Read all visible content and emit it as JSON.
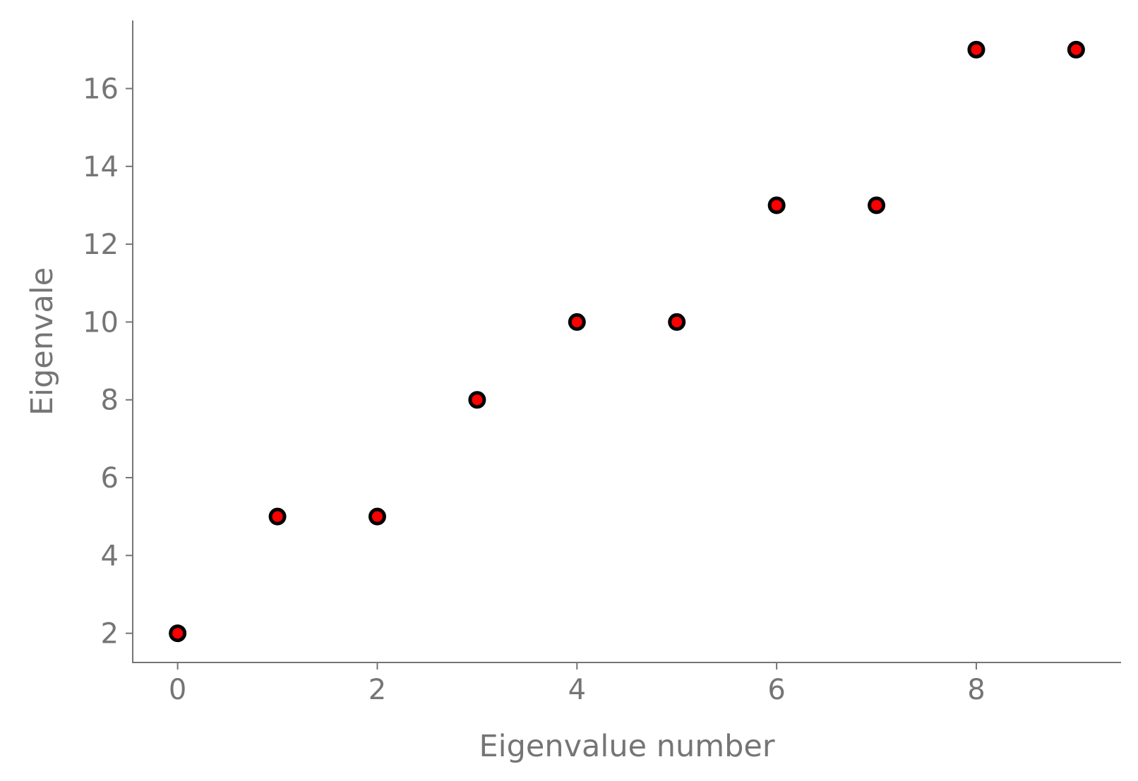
{
  "chart_data": {
    "type": "scatter",
    "title": "",
    "xlabel": "Eigenvalue number",
    "ylabel": "Eigenvale",
    "x": [
      0,
      1,
      2,
      3,
      4,
      5,
      6,
      7,
      8,
      9
    ],
    "y": [
      2,
      5,
      5,
      8,
      10,
      10,
      13,
      13,
      17,
      17
    ],
    "xlim": [
      -0.45,
      9.45
    ],
    "ylim": [
      1.25,
      17.75
    ],
    "xticks": [
      0,
      2,
      4,
      6,
      8
    ],
    "yticks": [
      2,
      4,
      6,
      8,
      10,
      12,
      14,
      16
    ],
    "grid": false,
    "legend": "none",
    "colors": {
      "marker_fill": "#ff0000",
      "marker_edge": "#000000",
      "axis": "#757575"
    }
  }
}
